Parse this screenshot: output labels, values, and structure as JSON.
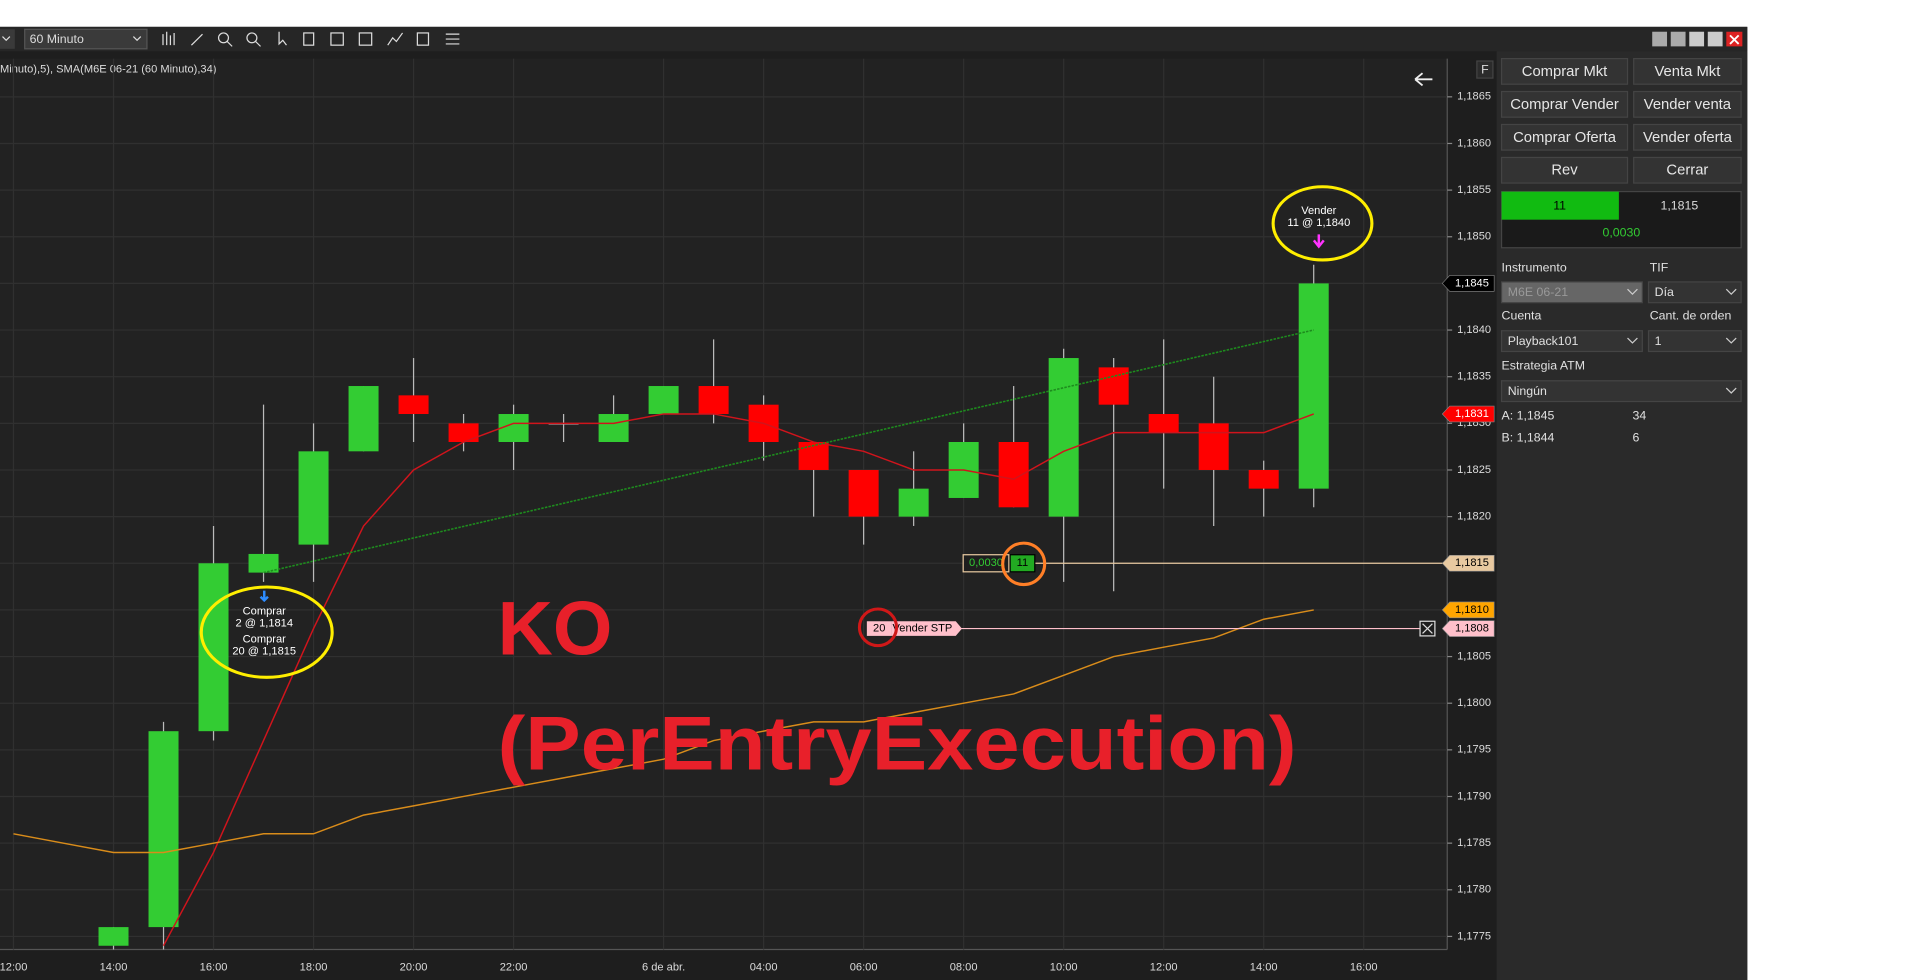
{
  "toolbar": {
    "interval": "60 Minuto"
  },
  "chart_data": {
    "type": "candlestick",
    "indicator_label": "Minuto),5), SMA(M6E 06-21 (60 Minuto),34)",
    "x": [
      2,
      3,
      4,
      5,
      6,
      7,
      8,
      9,
      10,
      11,
      12,
      13,
      14,
      15,
      16,
      17,
      18,
      19,
      20,
      21,
      22,
      23,
      24,
      25,
      26
    ],
    "open": [
      1.1774,
      1.1776,
      1.1797,
      1.1814,
      1.1817,
      1.1827,
      1.1833,
      1.183,
      1.1828,
      1.183,
      1.1828,
      1.1831,
      1.1834,
      1.1832,
      1.1828,
      1.1825,
      1.182,
      1.1822,
      1.1828,
      1.182,
      1.1836,
      1.1831,
      1.183,
      1.1825,
      1.1823
    ],
    "high": [
      1.1776,
      1.1798,
      1.1819,
      1.1832,
      1.183,
      1.1834,
      1.1837,
      1.1831,
      1.1832,
      1.1831,
      1.1833,
      1.1834,
      1.1839,
      1.1833,
      1.1828,
      1.1825,
      1.1827,
      1.183,
      1.1834,
      1.1838,
      1.1837,
      1.1839,
      1.1835,
      1.1826,
      1.1847
    ],
    "low": [
      1.1773,
      1.1772,
      1.1796,
      1.1813,
      1.1813,
      1.1827,
      1.1828,
      1.1827,
      1.1825,
      1.1828,
      1.1828,
      1.1831,
      1.183,
      1.1826,
      1.182,
      1.1817,
      1.1819,
      1.1822,
      1.1821,
      1.1813,
      1.1812,
      1.1823,
      1.1819,
      1.182,
      1.1821
    ],
    "close": [
      1.1776,
      1.1797,
      1.1815,
      1.1816,
      1.1827,
      1.1834,
      1.1831,
      1.1828,
      1.1831,
      1.183,
      1.1831,
      1.1834,
      1.1831,
      1.1828,
      1.1825,
      1.182,
      1.1823,
      1.1828,
      1.1821,
      1.1837,
      1.1832,
      1.1829,
      1.1825,
      1.1823,
      1.1845
    ],
    "up_color": "#33cc33",
    "down_color": "#ff0000",
    "lines": [
      {
        "color": "#d0141c",
        "x": [
          3,
          4,
          5,
          6,
          7,
          8,
          9,
          10,
          11,
          12,
          13,
          14,
          15,
          16,
          17,
          18,
          19,
          20,
          21,
          22,
          23,
          24,
          25,
          26
        ],
        "values": [
          1.1774,
          1.1784,
          1.1796,
          1.1808,
          1.1819,
          1.1825,
          1.1828,
          1.183,
          1.183,
          1.183,
          1.1831,
          1.1831,
          1.183,
          1.1828,
          1.1827,
          1.1825,
          1.1825,
          1.1824,
          1.1827,
          1.1829,
          1.1829,
          1.1829,
          1.1829,
          1.1831
        ]
      },
      {
        "color": "#d98c1a",
        "x": [
          0,
          1,
          2,
          3,
          4,
          5,
          6,
          7,
          8,
          9,
          10,
          11,
          12,
          13,
          14,
          15,
          16,
          17,
          18,
          19,
          20,
          21,
          22,
          23,
          24,
          25,
          26
        ],
        "values": [
          1.1786,
          1.1785,
          1.1784,
          1.1784,
          1.1785,
          1.1786,
          1.1786,
          1.1788,
          1.1789,
          1.179,
          1.1791,
          1.1792,
          1.1793,
          1.1794,
          1.1796,
          1.1797,
          1.1798,
          1.1798,
          1.1799,
          1.18,
          1.1801,
          1.1803,
          1.1805,
          1.1806,
          1.1807,
          1.1809,
          1.181
        ]
      }
    ],
    "xlim": [
      -0.27,
      28.67
    ],
    "xticks": [
      {
        "value": 0,
        "label": "12:00"
      },
      {
        "value": 2,
        "label": "14:00"
      },
      {
        "value": 4,
        "label": "16:00"
      },
      {
        "value": 6,
        "label": "18:00"
      },
      {
        "value": 8,
        "label": "20:00"
      },
      {
        "value": 10,
        "label": "22:00"
      },
      {
        "value": 13,
        "label": "6 de abr."
      },
      {
        "value": 15,
        "label": "04:00"
      },
      {
        "value": 17,
        "label": "06:00"
      },
      {
        "value": 19,
        "label": "08:00"
      },
      {
        "value": 21,
        "label": "10:00"
      },
      {
        "value": 23,
        "label": "12:00"
      },
      {
        "value": 25,
        "label": "14:00"
      },
      {
        "value": 27,
        "label": "16:00"
      }
    ],
    "ylim": [
      1.17736,
      1.18691
    ],
    "yticks": [
      {
        "value": 1.1865,
        "label": "1,1865"
      },
      {
        "value": 1.186,
        "label": "1,1860"
      },
      {
        "value": 1.1855,
        "label": "1,1855"
      },
      {
        "value": 1.185,
        "label": "1,1850"
      },
      {
        "value": 1.1845,
        "label": "1,1845"
      },
      {
        "value": 1.184,
        "label": "1,1840"
      },
      {
        "value": 1.1835,
        "label": "1,1835"
      },
      {
        "value": 1.183,
        "label": "1,1830"
      },
      {
        "value": 1.1825,
        "label": "1,1825"
      },
      {
        "value": 1.182,
        "label": "1,1820"
      },
      {
        "value": 1.1815,
        "label": "1,1815"
      },
      {
        "value": 1.181,
        "label": "1,1810"
      },
      {
        "value": 1.1805,
        "label": "1,1805"
      },
      {
        "value": 1.18,
        "label": "1,1800"
      },
      {
        "value": 1.1795,
        "label": "1,1795"
      },
      {
        "value": 1.179,
        "label": "1,1790"
      },
      {
        "value": 1.1785,
        "label": "1,1785"
      },
      {
        "value": 1.178,
        "label": "1,1780"
      },
      {
        "value": 1.1775,
        "label": "1,1775"
      }
    ],
    "grid": true,
    "price_markers": [
      {
        "value": 1.1845,
        "label": "1,1845",
        "color": "#000000",
        "text_color": "#ffffff"
      },
      {
        "value": 1.1831,
        "label": "1,1831",
        "color": "#ff0000",
        "text_color": "#ffffff"
      },
      {
        "value": 1.1815,
        "label": "1,1815",
        "color": "#e8c9a0",
        "text_color": "#000000"
      },
      {
        "value": 1.181,
        "label": "1,1810",
        "color": "#ffa500",
        "text_color": "#000000"
      },
      {
        "value": 1.1808,
        "label": "1,1808",
        "color": "#ffc0cb",
        "text_color": "#000000"
      }
    ],
    "position": {
      "value": 1.1815,
      "pnl": "0,0030",
      "quantity": "11",
      "color": "#e8c9a0"
    },
    "stop_order": {
      "value": 1.1808,
      "quantity": "20",
      "label": "Vender STP",
      "color": "#ffc0cb"
    },
    "trade_line": {
      "color": "#1e8c1e",
      "x": [
        5,
        26
      ],
      "values": [
        1.1814,
        1.184
      ]
    },
    "executions": [
      [
        "Comprar",
        "2 @ 1,1814"
      ],
      [
        "Comprar",
        "20 @ 1,1815"
      ],
      [
        "Vender",
        "11 @ 1,1840"
      ]
    ],
    "annotation": [
      "KO",
      "(PerEntryExecution)"
    ],
    "flag": "F"
  },
  "panel": {
    "buttons": [
      [
        "Comprar Mkt",
        "Venta Mkt"
      ],
      [
        "Comprar Vender",
        "Vender venta"
      ],
      [
        "Comprar Oferta",
        "Vender oferta"
      ],
      [
        "Rev",
        "Cerrar"
      ]
    ],
    "position": {
      "quantity": "11",
      "price": "1,1815",
      "pnl": "0,0030"
    },
    "labels": [
      "Instrumento",
      "TIF",
      "Cuenta",
      "Cant. de orden",
      "Estrategia ATM"
    ],
    "instrument": "M6E 06-21",
    "tif": "Día",
    "account": "Playback101",
    "quantity": "1",
    "atm": "Ningún",
    "ask": "A: 1,1845",
    "ask_size": "34",
    "bid": "B: 1,1844",
    "bid_size": "6"
  }
}
